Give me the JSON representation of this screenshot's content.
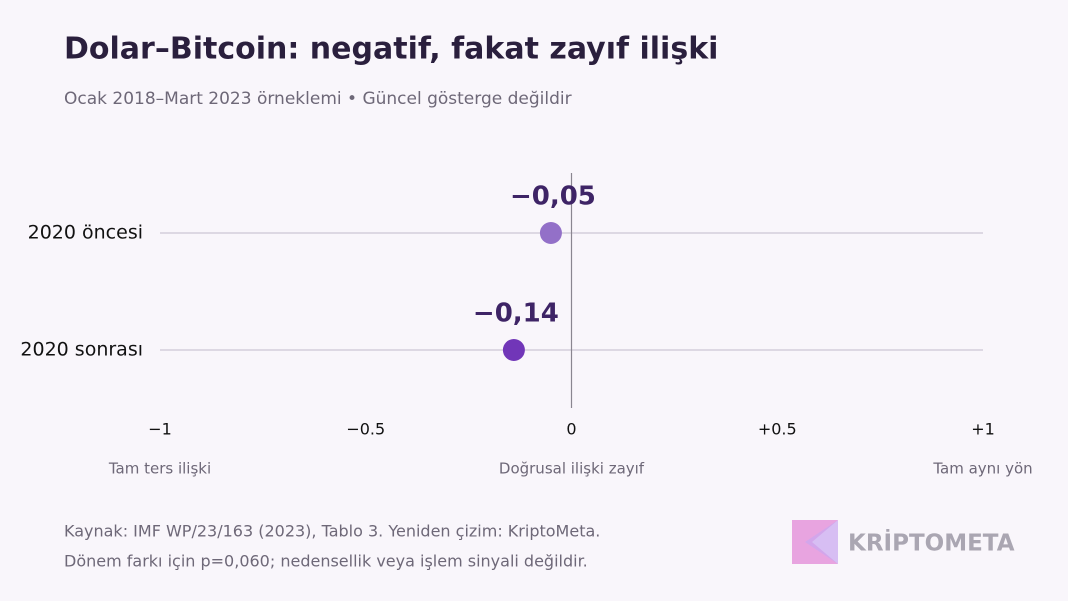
{
  "chart_data": {
    "type": "dot",
    "title": "Dolar–Bitcoin: negatif, fakat zayıf ilişki",
    "subtitle": "Ocak 2018–Mart 2023 örneklemi • Güncel gösterge değildir",
    "categories": [
      "2020 öncesi",
      "2020 sonrası"
    ],
    "values": [
      -0.05,
      -0.14
    ],
    "value_labels": [
      "−0,05",
      "−0,14"
    ],
    "colors": [
      "#9370c8",
      "#7136b8"
    ],
    "xlim": [
      -1,
      1
    ],
    "xticks": [
      {
        "value": -1,
        "label": "−1"
      },
      {
        "value": -0.5,
        "label": "−0.5"
      },
      0,
      {
        "value": 0.5,
        "label": "+0.5"
      },
      {
        "value": 1,
        "label": "+1"
      }
    ],
    "axis_annotations": [
      "Tam ters ilişki",
      "Doğrusal ilişki zayıf",
      "Tam aynı yön"
    ],
    "notes": [
      "Kaynak: IMF WP/23/163 (2023), Tablo 3. Yeniden çizim: KriptoMeta.",
      "Dönem farkı için p=0,060; nedensellik veya işlem sinyali değildir."
    ],
    "brand": "KRİPTOMETA"
  }
}
